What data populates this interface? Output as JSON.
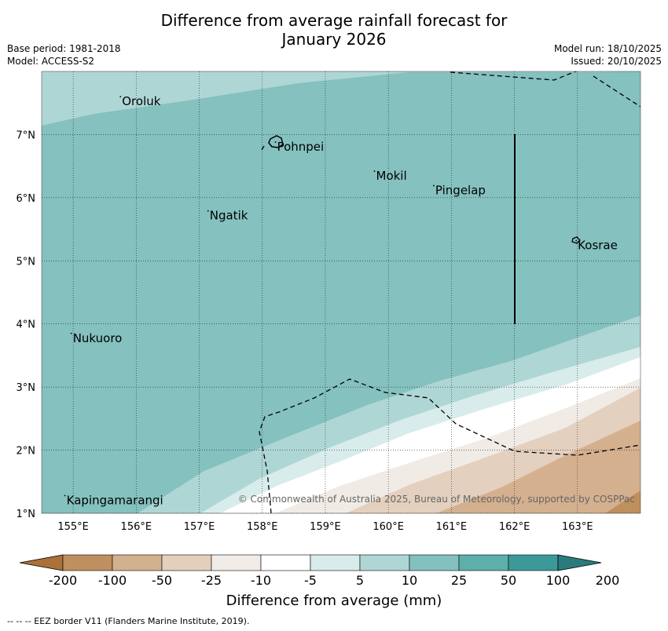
{
  "header": {
    "title_line1": "Difference from average rainfall forecast for",
    "title_line2": "January 2026",
    "base_period": "Base period: 1981-2018",
    "model": "Model: ACCESS-S2",
    "model_run": "Model run: 18/10/2025",
    "issued": "Issued: 20/10/2025"
  },
  "map": {
    "lon_labels": [
      "155°E",
      "156°E",
      "157°E",
      "158°E",
      "159°E",
      "160°E",
      "161°E",
      "162°E",
      "163°E"
    ],
    "lat_labels": [
      "7°N",
      "6°N",
      "5°N",
      "4°N",
      "3°N",
      "2°N",
      "1°N"
    ],
    "places": [
      {
        "name": "Oroluk",
        "lon": 155.75,
        "lat": 7.6
      },
      {
        "name": "Pohnpei",
        "lon": 158.21,
        "lat": 6.88
      },
      {
        "name": "Mokil",
        "lon": 159.78,
        "lat": 6.42
      },
      {
        "name": "Pingelap",
        "lon": 160.72,
        "lat": 6.19
      },
      {
        "name": "Ngatik",
        "lon": 157.14,
        "lat": 5.79
      },
      {
        "name": "Kosrae",
        "lon": 162.98,
        "lat": 5.32
      },
      {
        "name": "Nukuoro",
        "lon": 154.97,
        "lat": 3.85
      },
      {
        "name": "Kapingamarangi",
        "lon": 154.87,
        "lat": 1.28
      }
    ],
    "copyright": "© Commonwealth of Australia 2025, Bureau of Meteorology, supported by COSPPac"
  },
  "colorbar": {
    "tick_labels": [
      "-200",
      "-100",
      "-50",
      "-25",
      "-10",
      "-5",
      "5",
      "10",
      "25",
      "50",
      "100",
      "200"
    ],
    "colors": [
      "#ab7138",
      "#bf8f5f",
      "#d3b08e",
      "#e4cfbd",
      "#f2ece8",
      "#ffffff",
      "#d8eceb",
      "#aed6d5",
      "#83c1bf",
      "#5eaeac",
      "#3b9a99",
      "#2a7c7b"
    ],
    "title": "Difference from average (mm)"
  },
  "footer": "--  --  -- EEZ border V11 (Flanders Marine Institute, 2019)."
}
